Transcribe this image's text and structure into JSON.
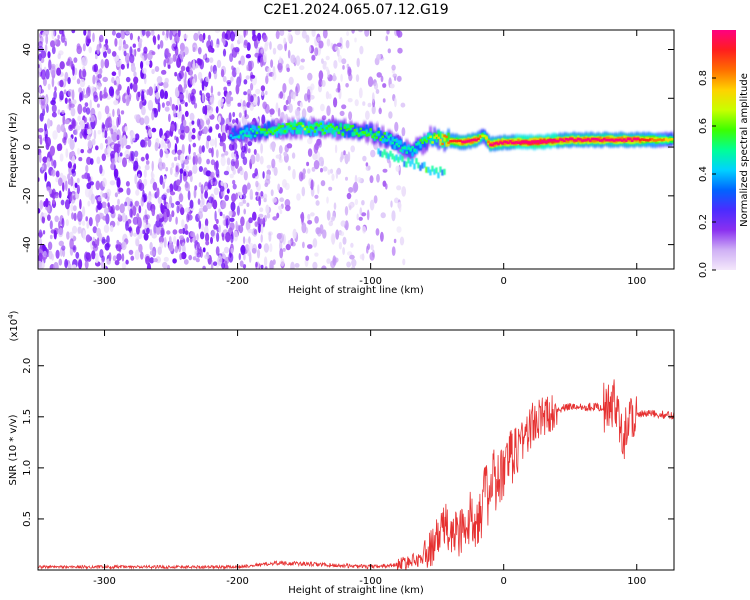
{
  "figure": {
    "title": "C2E1.2024.065.07.12.G19"
  },
  "chart_data": [
    {
      "type": "heatmap",
      "title": "C2E1.2024.065.07.12.G19",
      "xlabel": "Height of straight line (km)",
      "ylabel": "Frequency (Hz)",
      "xlim": [
        -350,
        128
      ],
      "ylim": [
        -50,
        48
      ],
      "x_ticks": [
        -300,
        -200,
        -100,
        0,
        100
      ],
      "y_ticks": [
        -40,
        -20,
        0,
        20,
        40
      ],
      "colorbar": {
        "label": "Normalized spectral amplitude",
        "range": [
          0,
          1
        ],
        "ticks": [
          "0.0",
          "0.2",
          "0.4",
          "0.6",
          "0.8"
        ],
        "colors": [
          "#f4e8fb",
          "#cfb0f5",
          "#8a30f0",
          "#4b2cff",
          "#0064ff",
          "#00d2ff",
          "#00ff96",
          "#3cff00",
          "#c8ff00",
          "#ffd200",
          "#ff6e00",
          "#ff1e1e",
          "#ff0080"
        ]
      },
      "ridge": {
        "description_x_km": [
          -205,
          -180,
          -150,
          -120,
          -100,
          -85,
          -70,
          -55,
          -45,
          -30,
          -20,
          -15,
          -10,
          0,
          25,
          50,
          75,
          100,
          128
        ],
        "frequency_hz": [
          5,
          7,
          8,
          7,
          6,
          3,
          -2,
          4,
          3,
          2,
          3,
          5,
          1,
          2,
          2,
          3,
          3,
          3,
          3
        ],
        "amplitude": [
          0.3,
          0.45,
          0.5,
          0.45,
          0.45,
          0.4,
          0.35,
          0.5,
          0.7,
          0.85,
          0.85,
          0.5,
          0.85,
          0.9,
          0.95,
          0.9,
          0.9,
          0.85,
          0.6
        ]
      },
      "noise_region_x_km": [
        -350,
        -75
      ],
      "grid": false
    },
    {
      "type": "line",
      "xlabel": "Height of straight line (km)",
      "ylabel": "SNR (10 * v/v)",
      "y_multiplier_label": "(x10",
      "y_multiplier_exp": "4",
      "xlim": [
        -350,
        128
      ],
      "ylim": [
        0,
        2.35
      ],
      "x_ticks": [
        -300,
        -200,
        -100,
        0,
        100
      ],
      "y_ticks": [
        "0.5",
        "1.0",
        "1.5",
        "2.0"
      ],
      "series": [
        {
          "color": "#e63232",
          "x": [
            -350,
            -200,
            -170,
            -150,
            -100,
            -80,
            -60,
            -50,
            -45,
            -40,
            -30,
            -20,
            -10,
            0,
            10,
            20,
            30,
            40,
            50,
            60,
            70,
            80,
            85,
            90,
            95,
            100,
            110,
            120,
            128
          ],
          "y": [
            0.03,
            0.03,
            0.07,
            0.06,
            0.03,
            0.05,
            0.12,
            0.3,
            0.45,
            0.35,
            0.4,
            0.55,
            0.8,
            0.95,
            1.2,
            1.4,
            1.5,
            1.57,
            1.6,
            1.6,
            1.6,
            1.58,
            1.65,
            1.3,
            1.52,
            1.52,
            1.53,
            1.52,
            1.51
          ]
        }
      ],
      "grid": false
    }
  ]
}
